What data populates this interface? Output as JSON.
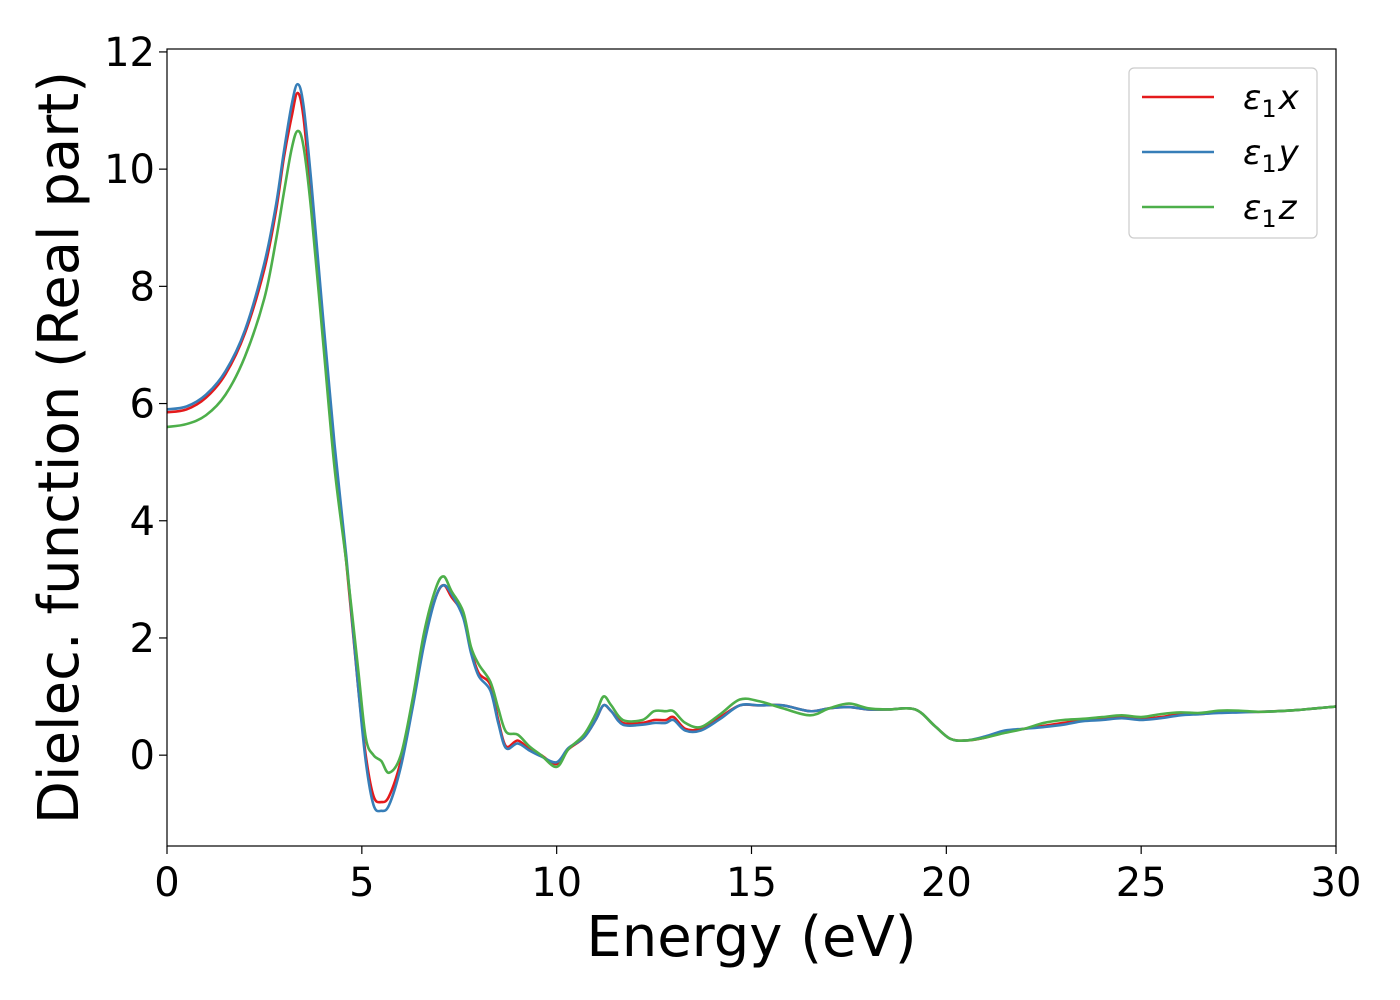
{
  "chart_data": {
    "type": "line",
    "xlabel": "Energy (eV)",
    "ylabel": "Dielec. function (Real part)",
    "xlim": [
      0,
      30
    ],
    "ylim": [
      -1.55,
      12.05
    ],
    "xticks": [
      0,
      5,
      10,
      15,
      20,
      25,
      30
    ],
    "yticks": [
      0,
      2,
      4,
      6,
      8,
      10,
      12
    ],
    "grid": false,
    "legend_position": "top-right",
    "series": [
      {
        "name": "ε1x",
        "legend_base": "ε",
        "legend_sub": "1",
        "legend_var": "x",
        "color": "#e41a1c",
        "points": [
          [
            0,
            5.85
          ],
          [
            0.5,
            5.9
          ],
          [
            1.0,
            6.1
          ],
          [
            1.5,
            6.5
          ],
          [
            2.0,
            7.2
          ],
          [
            2.5,
            8.3
          ],
          [
            2.8,
            9.3
          ],
          [
            3.0,
            10.2
          ],
          [
            3.2,
            10.9
          ],
          [
            3.35,
            11.3
          ],
          [
            3.5,
            10.9
          ],
          [
            3.7,
            9.5
          ],
          [
            4.0,
            7.2
          ],
          [
            4.3,
            5.1
          ],
          [
            4.6,
            3.3
          ],
          [
            4.9,
            1.2
          ],
          [
            5.1,
            0.0
          ],
          [
            5.3,
            -0.7
          ],
          [
            5.5,
            -0.8
          ],
          [
            5.7,
            -0.7
          ],
          [
            6.0,
            -0.1
          ],
          [
            6.3,
            0.9
          ],
          [
            6.6,
            2.0
          ],
          [
            6.9,
            2.7
          ],
          [
            7.1,
            2.9
          ],
          [
            7.3,
            2.7
          ],
          [
            7.6,
            2.4
          ],
          [
            7.8,
            1.8
          ],
          [
            8.0,
            1.4
          ],
          [
            8.3,
            1.2
          ],
          [
            8.5,
            0.6
          ],
          [
            8.7,
            0.15
          ],
          [
            9.0,
            0.25
          ],
          [
            9.3,
            0.1
          ],
          [
            9.6,
            0.0
          ],
          [
            10.0,
            -0.15
          ],
          [
            10.3,
            0.1
          ],
          [
            10.7,
            0.3
          ],
          [
            11.0,
            0.6
          ],
          [
            11.2,
            0.85
          ],
          [
            11.4,
            0.75
          ],
          [
            11.7,
            0.55
          ],
          [
            12.2,
            0.55
          ],
          [
            12.5,
            0.6
          ],
          [
            12.8,
            0.6
          ],
          [
            13.0,
            0.65
          ],
          [
            13.3,
            0.45
          ],
          [
            13.7,
            0.45
          ],
          [
            14.2,
            0.65
          ],
          [
            14.7,
            0.85
          ],
          [
            15.2,
            0.85
          ],
          [
            15.8,
            0.85
          ],
          [
            16.5,
            0.75
          ],
          [
            17.0,
            0.8
          ],
          [
            17.5,
            0.82
          ],
          [
            18.0,
            0.78
          ],
          [
            18.5,
            0.78
          ],
          [
            19.2,
            0.78
          ],
          [
            19.7,
            0.5
          ],
          [
            20.1,
            0.28
          ],
          [
            20.5,
            0.25
          ],
          [
            21.0,
            0.3
          ],
          [
            21.5,
            0.4
          ],
          [
            22.0,
            0.45
          ],
          [
            22.5,
            0.5
          ],
          [
            23.0,
            0.55
          ],
          [
            23.5,
            0.6
          ],
          [
            24.0,
            0.62
          ],
          [
            24.5,
            0.65
          ],
          [
            25.0,
            0.62
          ],
          [
            25.5,
            0.65
          ],
          [
            26.0,
            0.7
          ],
          [
            26.5,
            0.7
          ],
          [
            27.0,
            0.73
          ],
          [
            27.5,
            0.74
          ],
          [
            28.0,
            0.74
          ],
          [
            28.5,
            0.75
          ],
          [
            29.0,
            0.77
          ],
          [
            29.5,
            0.8
          ],
          [
            30.0,
            0.83
          ]
        ]
      },
      {
        "name": "ε1y",
        "legend_base": "ε",
        "legend_sub": "1",
        "legend_var": "y",
        "color": "#377eb8",
        "points": [
          [
            0,
            5.9
          ],
          [
            0.5,
            5.95
          ],
          [
            1.0,
            6.15
          ],
          [
            1.5,
            6.55
          ],
          [
            2.0,
            7.25
          ],
          [
            2.5,
            8.4
          ],
          [
            2.8,
            9.4
          ],
          [
            3.0,
            10.3
          ],
          [
            3.2,
            11.1
          ],
          [
            3.35,
            11.45
          ],
          [
            3.5,
            11.1
          ],
          [
            3.7,
            9.8
          ],
          [
            4.0,
            7.5
          ],
          [
            4.3,
            5.3
          ],
          [
            4.6,
            3.4
          ],
          [
            4.9,
            1.2
          ],
          [
            5.1,
            -0.1
          ],
          [
            5.3,
            -0.85
          ],
          [
            5.5,
            -0.95
          ],
          [
            5.7,
            -0.85
          ],
          [
            6.0,
            -0.2
          ],
          [
            6.3,
            0.8
          ],
          [
            6.6,
            1.9
          ],
          [
            6.9,
            2.7
          ],
          [
            7.1,
            2.9
          ],
          [
            7.3,
            2.75
          ],
          [
            7.6,
            2.35
          ],
          [
            7.8,
            1.75
          ],
          [
            8.0,
            1.35
          ],
          [
            8.3,
            1.1
          ],
          [
            8.5,
            0.55
          ],
          [
            8.7,
            0.12
          ],
          [
            9.0,
            0.2
          ],
          [
            9.3,
            0.08
          ],
          [
            9.6,
            -0.02
          ],
          [
            10.0,
            -0.12
          ],
          [
            10.3,
            0.12
          ],
          [
            10.7,
            0.3
          ],
          [
            11.0,
            0.6
          ],
          [
            11.2,
            0.85
          ],
          [
            11.4,
            0.75
          ],
          [
            11.7,
            0.52
          ],
          [
            12.2,
            0.52
          ],
          [
            12.5,
            0.55
          ],
          [
            12.8,
            0.55
          ],
          [
            13.0,
            0.6
          ],
          [
            13.3,
            0.42
          ],
          [
            13.7,
            0.42
          ],
          [
            14.2,
            0.62
          ],
          [
            14.7,
            0.85
          ],
          [
            15.2,
            0.85
          ],
          [
            15.8,
            0.85
          ],
          [
            16.5,
            0.75
          ],
          [
            17.0,
            0.8
          ],
          [
            17.5,
            0.82
          ],
          [
            18.0,
            0.78
          ],
          [
            18.5,
            0.78
          ],
          [
            19.2,
            0.78
          ],
          [
            19.7,
            0.5
          ],
          [
            20.1,
            0.28
          ],
          [
            20.5,
            0.25
          ],
          [
            21.0,
            0.32
          ],
          [
            21.5,
            0.42
          ],
          [
            22.0,
            0.45
          ],
          [
            22.5,
            0.48
          ],
          [
            23.0,
            0.52
          ],
          [
            23.5,
            0.58
          ],
          [
            24.0,
            0.6
          ],
          [
            24.5,
            0.63
          ],
          [
            25.0,
            0.6
          ],
          [
            25.5,
            0.63
          ],
          [
            26.0,
            0.68
          ],
          [
            26.5,
            0.7
          ],
          [
            27.0,
            0.72
          ],
          [
            27.5,
            0.73
          ],
          [
            28.0,
            0.74
          ],
          [
            28.5,
            0.75
          ],
          [
            29.0,
            0.77
          ],
          [
            29.5,
            0.8
          ],
          [
            30.0,
            0.83
          ]
        ]
      },
      {
        "name": "ε1z",
        "legend_base": "ε",
        "legend_sub": "1",
        "legend_var": "z",
        "color": "#4daf4a",
        "points": [
          [
            0,
            5.6
          ],
          [
            0.5,
            5.65
          ],
          [
            1.0,
            5.8
          ],
          [
            1.5,
            6.15
          ],
          [
            2.0,
            6.8
          ],
          [
            2.5,
            7.8
          ],
          [
            2.8,
            8.8
          ],
          [
            3.0,
            9.6
          ],
          [
            3.2,
            10.35
          ],
          [
            3.35,
            10.65
          ],
          [
            3.5,
            10.4
          ],
          [
            3.7,
            9.3
          ],
          [
            4.0,
            7.1
          ],
          [
            4.3,
            4.9
          ],
          [
            4.6,
            3.3
          ],
          [
            4.9,
            1.5
          ],
          [
            5.1,
            0.3
          ],
          [
            5.3,
            0.0
          ],
          [
            5.5,
            -0.1
          ],
          [
            5.7,
            -0.3
          ],
          [
            6.0,
            0.0
          ],
          [
            6.3,
            0.95
          ],
          [
            6.6,
            2.1
          ],
          [
            6.9,
            2.85
          ],
          [
            7.1,
            3.05
          ],
          [
            7.3,
            2.8
          ],
          [
            7.6,
            2.45
          ],
          [
            7.8,
            1.85
          ],
          [
            8.0,
            1.55
          ],
          [
            8.3,
            1.25
          ],
          [
            8.5,
            0.8
          ],
          [
            8.7,
            0.4
          ],
          [
            9.0,
            0.35
          ],
          [
            9.3,
            0.15
          ],
          [
            9.6,
            0.0
          ],
          [
            10.0,
            -0.2
          ],
          [
            10.3,
            0.1
          ],
          [
            10.7,
            0.35
          ],
          [
            11.0,
            0.7
          ],
          [
            11.2,
            1.0
          ],
          [
            11.4,
            0.85
          ],
          [
            11.7,
            0.6
          ],
          [
            12.2,
            0.6
          ],
          [
            12.5,
            0.75
          ],
          [
            12.8,
            0.75
          ],
          [
            13.0,
            0.75
          ],
          [
            13.3,
            0.55
          ],
          [
            13.7,
            0.48
          ],
          [
            14.2,
            0.7
          ],
          [
            14.7,
            0.95
          ],
          [
            15.2,
            0.92
          ],
          [
            15.8,
            0.8
          ],
          [
            16.5,
            0.68
          ],
          [
            17.0,
            0.8
          ],
          [
            17.5,
            0.88
          ],
          [
            18.0,
            0.8
          ],
          [
            18.5,
            0.78
          ],
          [
            19.2,
            0.78
          ],
          [
            19.7,
            0.5
          ],
          [
            20.1,
            0.28
          ],
          [
            20.5,
            0.25
          ],
          [
            21.0,
            0.3
          ],
          [
            21.5,
            0.38
          ],
          [
            22.0,
            0.45
          ],
          [
            22.5,
            0.55
          ],
          [
            23.0,
            0.6
          ],
          [
            23.5,
            0.62
          ],
          [
            24.0,
            0.65
          ],
          [
            24.5,
            0.68
          ],
          [
            25.0,
            0.65
          ],
          [
            25.5,
            0.7
          ],
          [
            26.0,
            0.73
          ],
          [
            26.5,
            0.72
          ],
          [
            27.0,
            0.76
          ],
          [
            27.5,
            0.76
          ],
          [
            28.0,
            0.74
          ],
          [
            28.5,
            0.75
          ],
          [
            29.0,
            0.77
          ],
          [
            29.5,
            0.8
          ],
          [
            30.0,
            0.83
          ]
        ]
      }
    ]
  }
}
